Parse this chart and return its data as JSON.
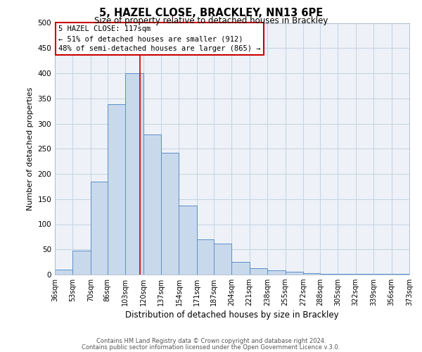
{
  "title": "5, HAZEL CLOSE, BRACKLEY, NN13 6PE",
  "subtitle": "Size of property relative to detached houses in Brackley",
  "xlabel": "Distribution of detached houses by size in Brackley",
  "ylabel": "Number of detached properties",
  "bar_color": "#c9d9ec",
  "bar_edge_color": "#5b8fc9",
  "grid_color": "#c8d4e3",
  "background_color": "#eef2f8",
  "annotation_box_color": "#cc0000",
  "vline_color": "#cc0000",
  "vline_x": 117,
  "bin_edges": [
    36,
    53,
    70,
    86,
    103,
    120,
    137,
    154,
    171,
    187,
    204,
    221,
    238,
    255,
    272,
    288,
    305,
    322,
    339,
    356,
    373
  ],
  "bar_heights": [
    10,
    47,
    185,
    338,
    400,
    278,
    242,
    137,
    70,
    62,
    25,
    12,
    8,
    5,
    3,
    2,
    2,
    2,
    2,
    2
  ],
  "tick_labels": [
    "36sqm",
    "53sqm",
    "70sqm",
    "86sqm",
    "103sqm",
    "120sqm",
    "137sqm",
    "154sqm",
    "171sqm",
    "187sqm",
    "204sqm",
    "221sqm",
    "238sqm",
    "255sqm",
    "272sqm",
    "288sqm",
    "305sqm",
    "322sqm",
    "339sqm",
    "356sqm",
    "373sqm"
  ],
  "ylim": [
    0,
    500
  ],
  "yticks": [
    0,
    50,
    100,
    150,
    200,
    250,
    300,
    350,
    400,
    450,
    500
  ],
  "annotation_title": "5 HAZEL CLOSE: 117sqm",
  "annotation_line1": "← 51% of detached houses are smaller (912)",
  "annotation_line2": "48% of semi-detached houses are larger (865) →",
  "footer1": "Contains HM Land Registry data © Crown copyright and database right 2024.",
  "footer2": "Contains public sector information licensed under the Open Government Licence v.3.0."
}
